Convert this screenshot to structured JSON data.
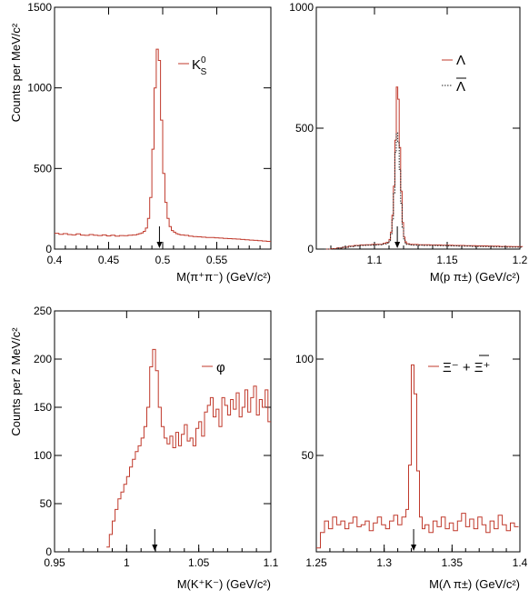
{
  "colors": {
    "series": "#c0392b",
    "axis": "#000000",
    "dotted": "#222222"
  },
  "ylabels": [
    "Counts per MeV/c²",
    "Counts per 2 MeV/c²"
  ],
  "chart_data": [
    {
      "type": "line",
      "step": true,
      "xlabel": "M(π⁺π⁻) (GeV/c²)",
      "xlim": [
        0.4,
        0.6
      ],
      "ylim": [
        0,
        1500
      ],
      "xticks": [
        0.4,
        0.45,
        0.5,
        0.55
      ],
      "xtick_labels": [
        "0.4",
        "0.45",
        "0.5",
        "0.55"
      ],
      "yticks": [
        0,
        500,
        1000,
        1500
      ],
      "ytick_labels": [
        "0",
        "500",
        "1000",
        "1500"
      ],
      "legend": [
        {
          "label": "K",
          "sup": "0",
          "sub": "S",
          "style": "solid"
        }
      ],
      "marker_x": 0.497,
      "series": [
        {
          "style": "solid",
          "x": [
            0.4,
            0.404,
            0.408,
            0.412,
            0.416,
            0.42,
            0.424,
            0.428,
            0.432,
            0.436,
            0.44,
            0.444,
            0.448,
            0.452,
            0.456,
            0.46,
            0.464,
            0.468,
            0.472,
            0.476,
            0.478,
            0.48,
            0.482,
            0.484,
            0.486,
            0.488,
            0.49,
            0.492,
            0.494,
            0.496,
            0.498,
            0.5,
            0.502,
            0.504,
            0.506,
            0.508,
            0.51,
            0.512,
            0.514,
            0.516,
            0.52,
            0.524,
            0.528,
            0.532,
            0.536,
            0.54,
            0.544,
            0.548,
            0.552,
            0.556,
            0.56,
            0.564,
            0.568,
            0.572,
            0.576,
            0.58,
            0.584,
            0.588,
            0.592,
            0.596
          ],
          "y": [
            98,
            92,
            96,
            90,
            88,
            94,
            87,
            85,
            90,
            86,
            84,
            88,
            82,
            86,
            80,
            84,
            83,
            86,
            88,
            92,
            96,
            100,
            110,
            130,
            190,
            320,
            620,
            1000,
            1240,
            1170,
            800,
            470,
            290,
            190,
            140,
            115,
            105,
            96,
            92,
            88,
            85,
            80,
            78,
            76,
            74,
            72,
            72,
            70,
            68,
            66,
            65,
            63,
            62,
            60,
            58,
            56,
            54,
            52,
            50,
            48
          ]
        }
      ]
    },
    {
      "type": "line",
      "step": true,
      "xlabel": "M(p π±) (GeV/c²)",
      "xlim": [
        1.06,
        1.2
      ],
      "ylim": [
        0,
        1000
      ],
      "xticks": [
        1.1,
        1.15,
        1.2
      ],
      "xtick_labels": [
        "1.1",
        "1.15",
        "1.2"
      ],
      "yticks": [
        0,
        500,
        1000
      ],
      "ytick_labels": [
        "0",
        "500",
        "1000"
      ],
      "legend": [
        {
          "label": "Λ",
          "style": "solid"
        },
        {
          "label": "Λ",
          "overline": true,
          "style": "dotted"
        }
      ],
      "marker_x": 1.1157,
      "series": [
        {
          "style": "solid",
          "x": [
            1.066,
            1.07,
            1.074,
            1.078,
            1.082,
            1.086,
            1.09,
            1.094,
            1.098,
            1.102,
            1.106,
            1.108,
            1.11,
            1.111,
            1.112,
            1.113,
            1.114,
            1.115,
            1.116,
            1.117,
            1.118,
            1.119,
            1.12,
            1.121,
            1.122,
            1.124,
            1.126,
            1.13,
            1.134,
            1.138,
            1.142,
            1.146,
            1.15,
            1.154,
            1.158,
            1.162,
            1.166,
            1.17,
            1.174,
            1.178,
            1.182,
            1.186,
            1.19,
            1.194,
            1.198
          ],
          "y": [
            0,
            2,
            5,
            8,
            12,
            15,
            17,
            18,
            19,
            20,
            24,
            28,
            40,
            70,
            140,
            260,
            450,
            670,
            620,
            420,
            240,
            110,
            50,
            30,
            22,
            20,
            19,
            18,
            18,
            17,
            17,
            16,
            16,
            15,
            15,
            14,
            14,
            13,
            13,
            12,
            12,
            11,
            11,
            10,
            10
          ]
        },
        {
          "style": "dotted",
          "x": [
            1.066,
            1.07,
            1.074,
            1.078,
            1.082,
            1.086,
            1.09,
            1.094,
            1.098,
            1.102,
            1.106,
            1.108,
            1.11,
            1.111,
            1.112,
            1.113,
            1.114,
            1.115,
            1.116,
            1.117,
            1.118,
            1.119,
            1.12,
            1.121,
            1.122,
            1.124,
            1.126,
            1.13,
            1.134,
            1.138,
            1.142,
            1.146,
            1.15,
            1.154,
            1.158,
            1.162,
            1.166,
            1.17,
            1.174,
            1.178,
            1.182,
            1.186,
            1.19,
            1.194,
            1.198
          ],
          "y": [
            0,
            1,
            4,
            7,
            10,
            13,
            15,
            16,
            17,
            18,
            21,
            25,
            35,
            60,
            120,
            230,
            400,
            480,
            440,
            330,
            190,
            90,
            42,
            26,
            19,
            17,
            16,
            16,
            15,
            15,
            14,
            14,
            13,
            13,
            12,
            12,
            11,
            11,
            10,
            10,
            9,
            9,
            8,
            8,
            8
          ]
        }
      ]
    },
    {
      "type": "line",
      "step": true,
      "xlabel": "M(K⁺K⁻) (GeV/c²)",
      "xlim": [
        0.95,
        1.1
      ],
      "ylim": [
        0,
        250
      ],
      "xticks": [
        0.95,
        1.0,
        1.05,
        1.1
      ],
      "xtick_labels": [
        "0.95",
        "1",
        "1.05",
        "1.1"
      ],
      "yticks": [
        0,
        50,
        100,
        150,
        200,
        250
      ],
      "ytick_labels": [
        "0",
        "50",
        "100",
        "150",
        "200",
        "250"
      ],
      "legend": [
        {
          "label": "φ",
          "style": "solid"
        }
      ],
      "marker_x": 1.0195,
      "series": [
        {
          "style": "solid",
          "x": [
            0.986,
            0.988,
            0.99,
            0.992,
            0.994,
            0.996,
            0.998,
            1.0,
            1.002,
            1.004,
            1.006,
            1.008,
            1.01,
            1.012,
            1.014,
            1.016,
            1.018,
            1.02,
            1.022,
            1.024,
            1.026,
            1.028,
            1.03,
            1.032,
            1.034,
            1.036,
            1.038,
            1.04,
            1.042,
            1.044,
            1.046,
            1.048,
            1.05,
            1.052,
            1.054,
            1.056,
            1.058,
            1.06,
            1.062,
            1.064,
            1.066,
            1.068,
            1.07,
            1.072,
            1.074,
            1.076,
            1.078,
            1.08,
            1.082,
            1.084,
            1.086,
            1.088,
            1.09,
            1.092,
            1.094,
            1.096,
            1.098
          ],
          "y": [
            5,
            18,
            32,
            44,
            55,
            62,
            70,
            78,
            88,
            96,
            104,
            110,
            118,
            130,
            150,
            192,
            210,
            188,
            150,
            130,
            118,
            112,
            120,
            108,
            124,
            110,
            122,
            132,
            115,
            118,
            110,
            128,
            135,
            120,
            145,
            152,
            160,
            140,
            148,
            130,
            160,
            152,
            142,
            158,
            148,
            165,
            140,
            150,
            168,
            145,
            160,
            172,
            142,
            158,
            150,
            168,
            135
          ]
        }
      ]
    },
    {
      "type": "line",
      "step": true,
      "xlabel": "M(Λ π±) (GeV/c²)",
      "xlim": [
        1.25,
        1.4
      ],
      "ylim": [
        0,
        125
      ],
      "xticks": [
        1.25,
        1.3,
        1.35,
        1.4
      ],
      "xtick_labels": [
        "1.25",
        "1.3",
        "1.35",
        "1.4"
      ],
      "yticks": [
        50,
        100
      ],
      "ytick_labels": [
        "50",
        "100"
      ],
      "legend": [
        {
          "label": "Ξ⁻ + Ξ⁺",
          "style": "solid"
        }
      ],
      "marker_x": 1.3217,
      "series": [
        {
          "style": "solid",
          "x": [
            1.25,
            1.253,
            1.256,
            1.259,
            1.262,
            1.265,
            1.268,
            1.271,
            1.274,
            1.277,
            1.28,
            1.283,
            1.286,
            1.289,
            1.292,
            1.295,
            1.298,
            1.301,
            1.304,
            1.307,
            1.31,
            1.313,
            1.316,
            1.318,
            1.32,
            1.322,
            1.324,
            1.326,
            1.328,
            1.33,
            1.333,
            1.336,
            1.339,
            1.342,
            1.345,
            1.348,
            1.351,
            1.354,
            1.357,
            1.36,
            1.363,
            1.366,
            1.369,
            1.372,
            1.375,
            1.378,
            1.381,
            1.384,
            1.387,
            1.39,
            1.393,
            1.396
          ],
          "y": [
            2,
            10,
            16,
            12,
            18,
            14,
            16,
            12,
            15,
            18,
            13,
            14,
            16,
            11,
            15,
            18,
            14,
            12,
            16,
            19,
            14,
            18,
            22,
            45,
            97,
            82,
            42,
            18,
            12,
            14,
            10,
            16,
            13,
            18,
            12,
            15,
            11,
            16,
            20,
            13,
            17,
            12,
            18,
            14,
            10,
            16,
            12,
            19,
            14,
            11,
            15,
            13
          ]
        }
      ]
    }
  ]
}
